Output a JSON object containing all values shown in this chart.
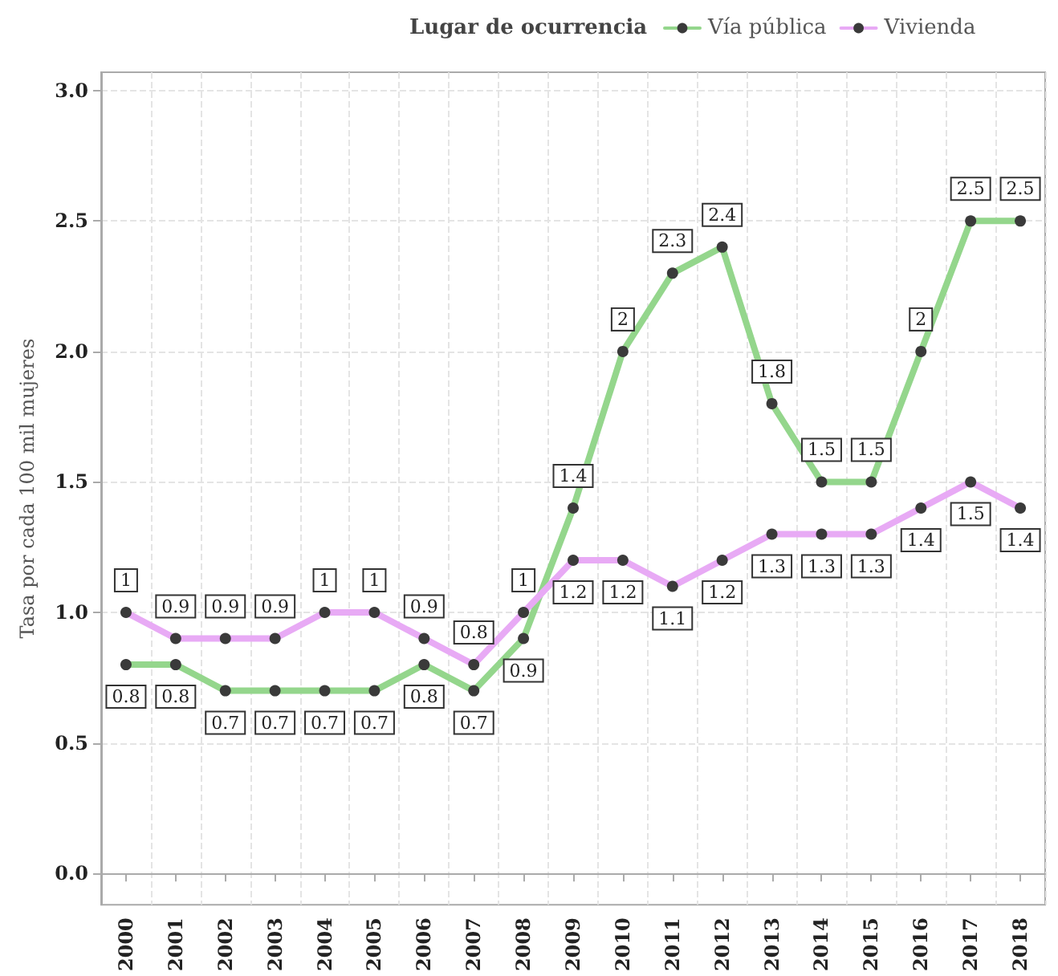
{
  "chart_data": {
    "type": "line",
    "categories": [
      "2000",
      "2001",
      "2002",
      "2003",
      "2004",
      "2005",
      "2006",
      "2007",
      "2008",
      "2009",
      "2010",
      "2011",
      "2012",
      "2013",
      "2014",
      "2015",
      "2016",
      "2017",
      "2018"
    ],
    "series": [
      {
        "name": "Vía pública",
        "color": "#94d68c",
        "values": [
          0.8,
          0.8,
          0.7,
          0.7,
          0.7,
          0.7,
          0.8,
          0.7,
          0.9,
          1.4,
          2,
          2.3,
          2.4,
          1.8,
          1.5,
          1.5,
          2,
          2.5,
          2.5
        ]
      },
      {
        "name": "Vivienda",
        "color": "#e8aaf5",
        "values": [
          1,
          0.9,
          0.9,
          0.9,
          1,
          1,
          0.9,
          0.8,
          1,
          1.2,
          1.2,
          1.1,
          1.2,
          1.3,
          1.3,
          1.3,
          1.4,
          1.5,
          1.4
        ]
      }
    ],
    "ylabel": "Tasa por cada 100 mil mujeres",
    "legend_title": "Lugar de ocurrencia",
    "legend": "top",
    "ylim": [
      -0.12,
      3.07
    ],
    "yticks": [
      {
        "value": 0,
        "label": "0.0"
      },
      {
        "value": 0.5,
        "label": "0.5"
      },
      {
        "value": 1,
        "label": "1.0"
      },
      {
        "value": 1.5,
        "label": "1.5"
      },
      {
        "value": 2,
        "label": "2.0"
      },
      {
        "value": 2.5,
        "label": "2.5"
      },
      {
        "value": 3,
        "label": "3.0"
      }
    ],
    "grid": true,
    "marker": "circle",
    "line_style": "solid",
    "data_labels": true
  }
}
